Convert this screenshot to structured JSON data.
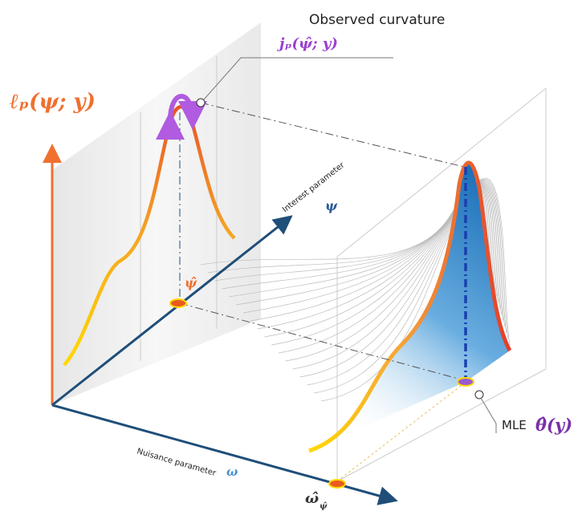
{
  "labels": {
    "observed_curvature": "Observed curvature",
    "curvature_symbol": "jₚ(ψ̂; y)",
    "profile_likelihood": "ℓₚ(ψ; y)",
    "interest_parameter": "Interest parameter",
    "interest_symbol": "ψ",
    "psi_hat": "ψ̂",
    "mle": "MLE",
    "theta_hat": "θ̂(y)",
    "nuisance_parameter": "Nuisance parameter",
    "nuisance_symbol": "ω",
    "omega_hat": "ω̂",
    "omega_sub": "ψ̂"
  }
}
